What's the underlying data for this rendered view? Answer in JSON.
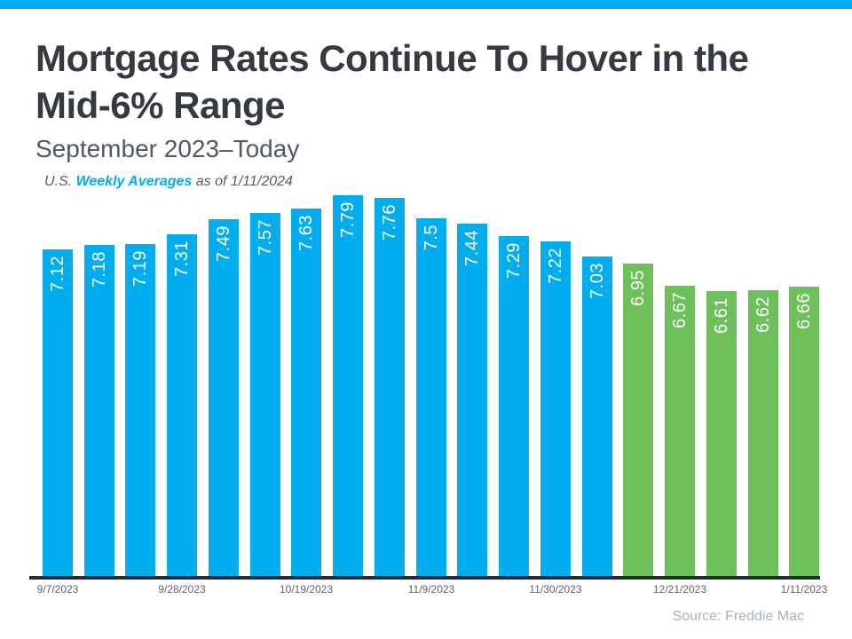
{
  "accent": {
    "top_bar_color": "#00adee"
  },
  "header": {
    "title": "Mortgage Rates Continue To Hover in the Mid-6% Range",
    "subtitle": "September 2023–Today",
    "note_prefix": "U.S.",
    "note_link": "Weekly Averages",
    "note_suffix": "as of 1/11/2024"
  },
  "chart_data": {
    "type": "bar",
    "title": "Mortgage Rates Continue To Hover in the Mid-6% Range",
    "subtitle": "September 2023–Today",
    "values": [
      7.12,
      7.18,
      7.19,
      7.31,
      7.49,
      7.57,
      7.63,
      7.79,
      7.76,
      7.5,
      7.44,
      7.29,
      7.22,
      7.03,
      6.95,
      6.67,
      6.61,
      6.62,
      6.66
    ],
    "bar_count": 19,
    "color_blue": "#00adee",
    "color_green": "#6ec05a",
    "green_start_index": 14,
    "bar_label_color": "#ffffff",
    "bar_label_rotation_degrees": 90,
    "x_tick_labels": [
      "9/7/2023",
      "9/28/2023",
      "10/19/2023",
      "11/9/2023",
      "11/30/2023",
      "12/21/2023",
      "1/11/2023"
    ],
    "x_tick_bar_indices": [
      0,
      3,
      6,
      9,
      12,
      15,
      18
    ],
    "ylim": [
      3.1,
      7.9
    ],
    "grid": false,
    "legend": "none",
    "axis_line_color": "#242c33"
  },
  "footer": {
    "source": "Source: Freddie Mac"
  }
}
